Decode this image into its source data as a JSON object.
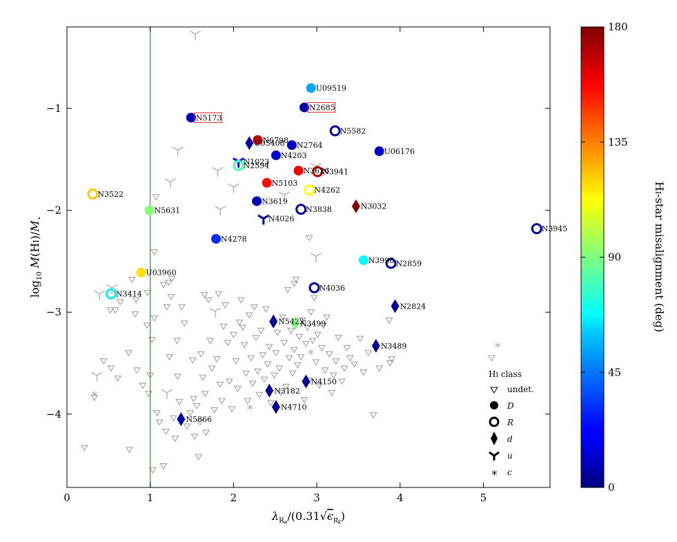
{
  "chart_data": {
    "type": "scatter",
    "xlabel": "λRe/(0.31√εRe)",
    "ylabel": "log10 M(HI)/M⋆",
    "xlim": [
      0,
      5.8
    ],
    "ylim": [
      -4.72,
      -0.2
    ],
    "xticks": [
      0,
      1,
      2,
      3,
      4,
      5
    ],
    "yticks": [
      -1,
      -2,
      -3,
      -4
    ],
    "xtick_labels": [
      "0",
      "1",
      "2",
      "3",
      "4",
      "5"
    ],
    "ytick_labels": [
      "−1",
      "−2",
      "−3",
      "−4"
    ],
    "vertical_line": {
      "x": 1.0,
      "color": "#3a8c2f"
    },
    "colorbar": {
      "label": "HI-star misalignment (deg)",
      "min": 0,
      "max": 180,
      "ticks": [
        0,
        45,
        90,
        135,
        180
      ],
      "tick_labels": [
        "0",
        "45",
        "90",
        "135",
        "180"
      ]
    },
    "legend": {
      "title": "HI class",
      "entries": [
        {
          "marker": "tri_down",
          "label": "undet."
        },
        {
          "marker": "filled_circle",
          "label": "D"
        },
        {
          "marker": "ring",
          "label": "R"
        },
        {
          "marker": "diamond",
          "label": "d"
        },
        {
          "marker": "tri_y",
          "label": "u"
        },
        {
          "marker": "star",
          "label": "c"
        }
      ]
    },
    "labeled_points": [
      {
        "name": "U09519",
        "x": 2.93,
        "y": -0.8,
        "cls": "D",
        "mis": 52
      },
      {
        "name": "N2685",
        "x": 2.85,
        "y": -0.99,
        "cls": "D",
        "mis": 8,
        "boxed": true
      },
      {
        "name": "N5173",
        "x": 1.49,
        "y": -1.09,
        "cls": "D",
        "mis": 10,
        "boxed": true
      },
      {
        "name": "N5582",
        "x": 3.22,
        "y": -1.22,
        "cls": "R",
        "mis": 5
      },
      {
        "name": "U05408",
        "x": 2.19,
        "y": -1.34,
        "cls": "d",
        "mis": 5
      },
      {
        "name": "N6798",
        "x": 2.29,
        "y": -1.31,
        "cls": "D",
        "mis": 170
      },
      {
        "name": "N2764",
        "x": 2.7,
        "y": -1.36,
        "cls": "D",
        "mis": 12
      },
      {
        "name": "U06176",
        "x": 3.75,
        "y": -1.42,
        "cls": "D",
        "mis": 12
      },
      {
        "name": "N1023",
        "x": 2.06,
        "y": -1.52,
        "cls": "u",
        "mis": 25
      },
      {
        "name": "N4203",
        "x": 2.51,
        "y": -1.46,
        "cls": "D",
        "mis": 15
      },
      {
        "name": "N2594",
        "x": 2.06,
        "y": -1.56,
        "cls": "R",
        "mis": 80
      },
      {
        "name": "N3626",
        "x": 2.78,
        "y": -1.61,
        "cls": "D",
        "mis": 160
      },
      {
        "name": "N3941",
        "x": 3.01,
        "y": -1.62,
        "cls": "R",
        "mis": 172
      },
      {
        "name": "N5103",
        "x": 2.4,
        "y": -1.73,
        "cls": "D",
        "mis": 155
      },
      {
        "name": "N4262",
        "x": 2.91,
        "y": -1.8,
        "cls": "R",
        "mis": 112
      },
      {
        "name": "N3522",
        "x": 0.31,
        "y": -1.84,
        "cls": "R",
        "mis": 122
      },
      {
        "name": "N3619",
        "x": 2.28,
        "y": -1.91,
        "cls": "D",
        "mis": 10
      },
      {
        "name": "N3032",
        "x": 3.47,
        "y": -1.96,
        "cls": "d",
        "mis": 178
      },
      {
        "name": "N5631",
        "x": 0.99,
        "y": -2.0,
        "cls": "D",
        "mis": 92
      },
      {
        "name": "N3838",
        "x": 2.81,
        "y": -1.99,
        "cls": "R",
        "mis": 5
      },
      {
        "name": "N4026",
        "x": 2.36,
        "y": -2.08,
        "cls": "u",
        "mis": 5
      },
      {
        "name": "N3945",
        "x": 5.64,
        "y": -2.18,
        "cls": "R",
        "mis": 5
      },
      {
        "name": "N4278",
        "x": 1.79,
        "y": -2.28,
        "cls": "D",
        "mis": 30
      },
      {
        "name": "N3998",
        "x": 3.56,
        "y": -2.49,
        "cls": "D",
        "mis": 68
      },
      {
        "name": "N2859",
        "x": 3.89,
        "y": -2.52,
        "cls": "R",
        "mis": 5
      },
      {
        "name": "U03960",
        "x": 0.89,
        "y": -2.61,
        "cls": "D",
        "mis": 118
      },
      {
        "name": "N4036",
        "x": 2.97,
        "y": -2.76,
        "cls": "R",
        "mis": 5
      },
      {
        "name": "N3414",
        "x": 0.53,
        "y": -2.82,
        "cls": "R",
        "mis": 65
      },
      {
        "name": "N2824",
        "x": 3.94,
        "y": -2.94,
        "cls": "d",
        "mis": 5
      },
      {
        "name": "N5422",
        "x": 2.48,
        "y": -3.09,
        "cls": "d",
        "mis": 5
      },
      {
        "name": "N3499",
        "x": 2.74,
        "y": -3.11,
        "cls": "d",
        "mis": 90
      },
      {
        "name": "N3489",
        "x": 3.71,
        "y": -3.33,
        "cls": "d",
        "mis": 5
      },
      {
        "name": "N4150",
        "x": 2.87,
        "y": -3.68,
        "cls": "d",
        "mis": 5
      },
      {
        "name": "N3182",
        "x": 2.43,
        "y": -3.77,
        "cls": "d",
        "mis": 5
      },
      {
        "name": "N4710",
        "x": 2.51,
        "y": -3.93,
        "cls": "d",
        "mis": 5
      },
      {
        "name": "N5866",
        "x": 1.37,
        "y": -4.05,
        "cls": "d",
        "mis": 5
      }
    ],
    "gray_u_points": [
      [
        1.54,
        -0.27
      ],
      [
        1.33,
        -1.41
      ],
      [
        1.24,
        -1.72
      ],
      [
        1.81,
        -1.61
      ],
      [
        1.84,
        -1.99
      ],
      [
        2.0,
        -1.77
      ],
      [
        2.61,
        -1.85
      ],
      [
        2.99,
        -1.57
      ],
      [
        0.54,
        -2.76
      ],
      [
        0.39,
        -2.82
      ],
      [
        2.99,
        -2.45
      ],
      [
        1.78,
        -2.99
      ],
      [
        0.36,
        -3.62
      ],
      [
        1.2,
        -3.79
      ]
    ],
    "gray_c_points": [
      [
        0.33,
        -3.8
      ],
      [
        2.2,
        -3.93
      ],
      [
        2.93,
        -3.39
      ],
      [
        5.17,
        -3.32
      ]
    ],
    "undetected_points": [
      [
        0.21,
        -4.33
      ],
      [
        0.33,
        -3.84
      ],
      [
        0.44,
        -3.48
      ],
      [
        0.52,
        -2.98
      ],
      [
        0.53,
        -3.55
      ],
      [
        0.58,
        -2.98
      ],
      [
        0.61,
        -3.65
      ],
      [
        0.64,
        -2.9
      ],
      [
        0.74,
        -3.4
      ],
      [
        0.75,
        -4.35
      ],
      [
        0.78,
        -2.68
      ],
      [
        0.82,
        -3.02
      ],
      [
        0.83,
        -2.88
      ],
      [
        0.84,
        -3.57
      ],
      [
        0.91,
        -3.72
      ],
      [
        0.96,
        -3.13
      ],
      [
        0.97,
        -2.81
      ],
      [
        0.98,
        -3.8
      ],
      [
        1.0,
        -3.62
      ],
      [
        1.02,
        -3.27
      ],
      [
        1.03,
        -4.55
      ],
      [
        1.05,
        -3.06
      ],
      [
        1.05,
        -2.41
      ],
      [
        1.07,
        -1.87
      ],
      [
        1.08,
        -3.99
      ],
      [
        1.11,
        -4.08
      ],
      [
        1.16,
        -4.51
      ],
      [
        1.16,
        -2.73
      ],
      [
        1.19,
        -4.17
      ],
      [
        1.2,
        -2.95
      ],
      [
        1.22,
        -2.71
      ],
      [
        1.23,
        -3.44
      ],
      [
        1.25,
        -2.85
      ],
      [
        1.26,
        -2.67
      ],
      [
        1.28,
        -4.04
      ],
      [
        1.3,
        -4.24
      ],
      [
        1.32,
        -3.28
      ],
      [
        1.33,
        -3.63
      ],
      [
        1.35,
        -3.88
      ],
      [
        1.38,
        -2.95
      ],
      [
        1.41,
        -3.11
      ],
      [
        1.44,
        -4.12
      ],
      [
        1.48,
        -3.99
      ],
      [
        1.51,
        -3.47
      ],
      [
        1.52,
        -3.85
      ],
      [
        1.53,
        -4.22
      ],
      [
        1.56,
        -3.92
      ],
      [
        1.58,
        -4.42
      ],
      [
        1.6,
        -4.08
      ],
      [
        1.61,
        -3.41
      ],
      [
        1.63,
        -3.64
      ],
      [
        1.65,
        -2.83
      ],
      [
        1.66,
        -3.8
      ],
      [
        1.67,
        -4.18
      ],
      [
        1.7,
        -2.88
      ],
      [
        1.72,
        -3.28
      ],
      [
        1.74,
        -3.55
      ],
      [
        1.77,
        -3.96
      ],
      [
        1.8,
        -3.46
      ],
      [
        1.82,
        -2.82
      ],
      [
        1.84,
        -3.71
      ],
      [
        1.86,
        -3.87
      ],
      [
        1.88,
        -3.14
      ],
      [
        1.9,
        -2.93
      ],
      [
        1.93,
        -3.3
      ],
      [
        1.95,
        -3.68
      ],
      [
        1.98,
        -3.95
      ],
      [
        2.0,
        -3.22
      ],
      [
        2.03,
        -3.48
      ],
      [
        2.05,
        -3.75
      ],
      [
        2.07,
        -3.1
      ],
      [
        2.09,
        -2.88
      ],
      [
        2.11,
        -3.15
      ],
      [
        2.13,
        -3.32
      ],
      [
        2.15,
        -3.6
      ],
      [
        2.17,
        -3.87
      ],
      [
        2.19,
        -3.03
      ],
      [
        2.21,
        -3.45
      ],
      [
        2.23,
        -3.7
      ],
      [
        2.25,
        -2.95
      ],
      [
        2.27,
        -3.25
      ],
      [
        2.29,
        -3.58
      ],
      [
        2.31,
        -3.81
      ],
      [
        2.33,
        -3.18
      ],
      [
        2.35,
        -3.42
      ],
      [
        2.37,
        -3.66
      ],
      [
        2.39,
        -2.97
      ],
      [
        2.41,
        -3.51
      ],
      [
        2.43,
        -3.34
      ],
      [
        2.45,
        -3.89
      ],
      [
        2.47,
        -3.12
      ],
      [
        2.49,
        -3.62
      ],
      [
        2.51,
        -3.4
      ],
      [
        2.53,
        -3.2
      ],
      [
        2.55,
        -3.55
      ],
      [
        2.57,
        -3.79
      ],
      [
        2.59,
        -3.05
      ],
      [
        2.61,
        -3.3
      ],
      [
        2.63,
        -3.73
      ],
      [
        2.65,
        -2.78
      ],
      [
        2.67,
        -3.45
      ],
      [
        2.69,
        -3.18
      ],
      [
        2.71,
        -3.6
      ],
      [
        2.73,
        -3.37
      ],
      [
        2.75,
        -2.68
      ],
      [
        2.77,
        -3.52
      ],
      [
        2.79,
        -3.24
      ],
      [
        2.81,
        -3.44
      ],
      [
        2.83,
        -3.08
      ],
      [
        2.85,
        -3.86
      ],
      [
        2.87,
        -3.31
      ],
      [
        2.89,
        -3.15
      ],
      [
        2.91,
        -3.67
      ],
      [
        2.93,
        -3.0
      ],
      [
        2.95,
        -3.28
      ],
      [
        2.97,
        -2.86
      ],
      [
        2.99,
        -3.49
      ],
      [
        3.01,
        -3.22
      ],
      [
        3.03,
        -3.72
      ],
      [
        3.06,
        -3.35
      ],
      [
        3.08,
        -3.13
      ],
      [
        3.1,
        -3.57
      ],
      [
        3.12,
        -3.05
      ],
      [
        3.15,
        -3.41
      ],
      [
        3.18,
        -3.79
      ],
      [
        3.2,
        -3.62
      ],
      [
        3.23,
        -3.48
      ],
      [
        3.26,
        -3.25
      ],
      [
        3.3,
        -3.68
      ],
      [
        3.33,
        -3.55
      ],
      [
        3.36,
        -3.35
      ],
      [
        3.4,
        -3.45
      ],
      [
        3.45,
        -3.51
      ],
      [
        3.52,
        -3.26
      ],
      [
        3.56,
        -3.59
      ],
      [
        3.62,
        -3.4
      ],
      [
        3.68,
        -4.01
      ],
      [
        3.75,
        -3.55
      ],
      [
        3.87,
        -3.08
      ],
      [
        3.88,
        -3.5
      ],
      [
        3.9,
        -3.46
      ],
      [
        2.91,
        -2.27
      ],
      [
        2.73,
        -2.72
      ],
      [
        5.1,
        -3.45
      ]
    ]
  }
}
